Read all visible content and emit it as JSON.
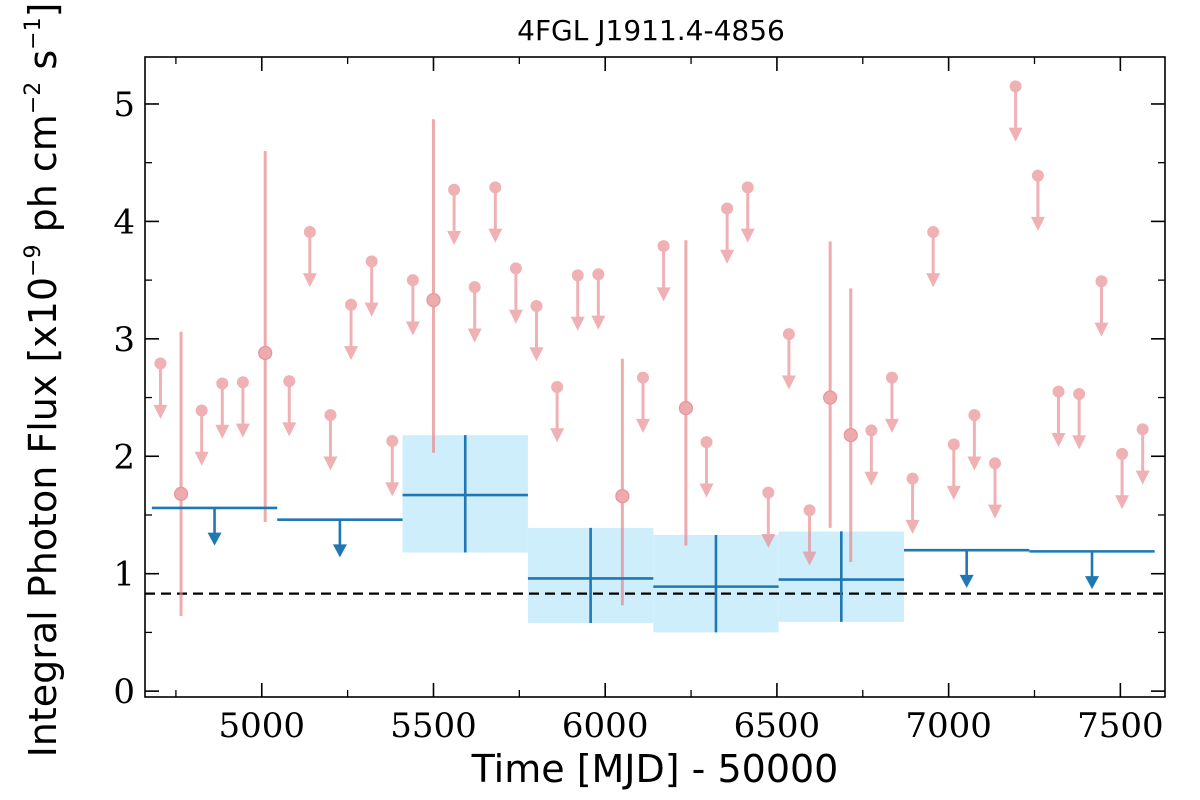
{
  "chart_data": {
    "type": "scatter",
    "title": "4FGL J1911.4-4856",
    "xlabel": "Time [MJD] - 50000",
    "ylabel": {
      "prefix": "Integral Photon Flux [x10",
      "exp1": "−9",
      "mid": " ph cm",
      "exp2": "−2",
      "mid2": " s",
      "exp3": "−1",
      "suffix": "]"
    },
    "xlim": [
      4660,
      7630
    ],
    "ylim": [
      -0.05,
      5.4
    ],
    "x_ticks": [
      5000,
      5500,
      6000,
      6500,
      7000,
      7500
    ],
    "y_ticks": [
      0,
      1,
      2,
      3,
      4,
      5
    ],
    "x_tick_labels": [
      "5000",
      "5500",
      "6000",
      "6500",
      "7000",
      "7500"
    ],
    "y_tick_labels": [
      "0",
      "1",
      "2",
      "3",
      "4",
      "5"
    ],
    "grid": false,
    "baseline": 0.83,
    "colors": {
      "fine": "#e8888c",
      "coarse": "#1f77b4",
      "band": "#cfeefc",
      "baseline": "#000000"
    },
    "fine_upper_limits": [
      {
        "x": 4705,
        "y": 2.79
      },
      {
        "x": 4825,
        "y": 2.39
      },
      {
        "x": 4885,
        "y": 2.62
      },
      {
        "x": 4945,
        "y": 2.63
      },
      {
        "x": 5080,
        "y": 2.64
      },
      {
        "x": 5140,
        "y": 3.91
      },
      {
        "x": 5200,
        "y": 2.35
      },
      {
        "x": 5260,
        "y": 3.29
      },
      {
        "x": 5320,
        "y": 3.66
      },
      {
        "x": 5380,
        "y": 2.13
      },
      {
        "x": 5440,
        "y": 3.5
      },
      {
        "x": 5560,
        "y": 4.27
      },
      {
        "x": 5620,
        "y": 3.44
      },
      {
        "x": 5680,
        "y": 4.29
      },
      {
        "x": 5740,
        "y": 3.6
      },
      {
        "x": 5800,
        "y": 3.28
      },
      {
        "x": 5860,
        "y": 2.59
      },
      {
        "x": 5920,
        "y": 3.54
      },
      {
        "x": 5980,
        "y": 3.55
      },
      {
        "x": 6110,
        "y": 2.67
      },
      {
        "x": 6170,
        "y": 3.79
      },
      {
        "x": 6295,
        "y": 2.12
      },
      {
        "x": 6355,
        "y": 4.11
      },
      {
        "x": 6415,
        "y": 4.29
      },
      {
        "x": 6475,
        "y": 1.69
      },
      {
        "x": 6535,
        "y": 3.04
      },
      {
        "x": 6595,
        "y": 1.54
      },
      {
        "x": 6775,
        "y": 2.22
      },
      {
        "x": 6835,
        "y": 2.67
      },
      {
        "x": 6895,
        "y": 1.81
      },
      {
        "x": 6955,
        "y": 3.91
      },
      {
        "x": 7015,
        "y": 2.1
      },
      {
        "x": 7075,
        "y": 2.35
      },
      {
        "x": 7135,
        "y": 1.94
      },
      {
        "x": 7195,
        "y": 5.15
      },
      {
        "x": 7260,
        "y": 4.39
      },
      {
        "x": 7320,
        "y": 2.55
      },
      {
        "x": 7380,
        "y": 2.53
      },
      {
        "x": 7445,
        "y": 3.49
      },
      {
        "x": 7505,
        "y": 2.02
      },
      {
        "x": 7565,
        "y": 2.23
      }
    ],
    "fine_detections": [
      {
        "x": 4765,
        "y": 1.68,
        "ylo": 0.64,
        "yhi": 3.06
      },
      {
        "x": 5010,
        "y": 2.88,
        "ylo": 1.44,
        "yhi": 4.6
      },
      {
        "x": 5500,
        "y": 3.33,
        "ylo": 2.03,
        "yhi": 4.87
      },
      {
        "x": 6050,
        "y": 1.66,
        "ylo": 0.73,
        "yhi": 2.83
      },
      {
        "x": 6235,
        "y": 2.41,
        "ylo": 1.24,
        "yhi": 3.84
      },
      {
        "x": 6655,
        "y": 2.5,
        "ylo": 1.39,
        "yhi": 3.83
      },
      {
        "x": 6715,
        "y": 2.18,
        "ylo": 1.1,
        "yhi": 3.43
      }
    ],
    "coarse_upper_limits": [
      {
        "xlo": 4680,
        "xhi": 5045,
        "y": 1.56
      },
      {
        "xlo": 5045,
        "xhi": 5410,
        "y": 1.46
      },
      {
        "xlo": 6870,
        "xhi": 7235,
        "y": 1.2
      },
      {
        "xlo": 7235,
        "xhi": 7600,
        "y": 1.19
      }
    ],
    "coarse_detections": [
      {
        "xlo": 5410,
        "xhi": 5775,
        "y": 1.67,
        "ylo": 1.18,
        "yhi": 2.18
      },
      {
        "xlo": 5775,
        "xhi": 6140,
        "y": 0.96,
        "ylo": 0.58,
        "yhi": 1.39
      },
      {
        "xlo": 6140,
        "xhi": 6505,
        "y": 0.89,
        "ylo": 0.5,
        "yhi": 1.33
      },
      {
        "xlo": 6505,
        "xhi": 6870,
        "y": 0.95,
        "ylo": 0.59,
        "yhi": 1.36
      }
    ]
  }
}
